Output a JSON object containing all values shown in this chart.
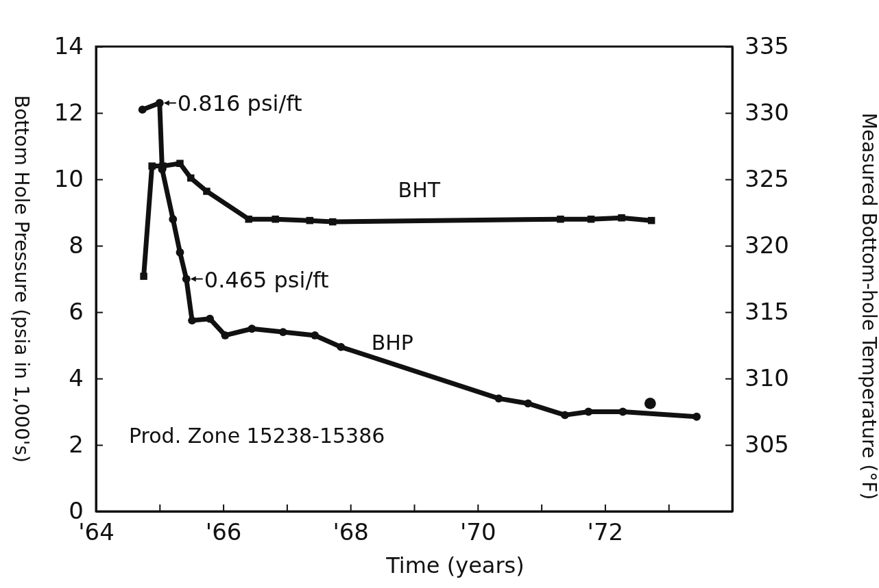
{
  "chart_data": {
    "type": "line",
    "xlabel": "Time (years)",
    "ylabel": "Bottom Hole Pressure (psia in 1,000's)",
    "y2label": "Measured Bottom-hole Temperature (°F)",
    "xlim": [
      64,
      74
    ],
    "xticks": [
      {
        "value": 64,
        "label": "'64"
      },
      {
        "value": 65,
        "label": null
      },
      {
        "value": 66,
        "label": "'66"
      },
      {
        "value": 67,
        "label": null
      },
      {
        "value": 68,
        "label": "'68"
      },
      {
        "value": 69,
        "label": null
      },
      {
        "value": 70,
        "label": "'70"
      },
      {
        "value": 71,
        "label": null
      },
      {
        "value": 72,
        "label": "'72"
      },
      {
        "value": 73,
        "label": null
      },
      {
        "value": 74,
        "label": null
      }
    ],
    "ylim": [
      0,
      14
    ],
    "yticks": [
      0,
      2,
      4,
      6,
      8,
      10,
      12,
      14
    ],
    "y2lim": [
      300,
      335
    ],
    "y2ticks": [
      305,
      310,
      315,
      320,
      325,
      330,
      335
    ],
    "grid": false,
    "line_style": "solid",
    "series": [
      {
        "name": "BHP",
        "marker": "circle",
        "color": "#111111",
        "x": [
          64.73,
          65.0,
          65.04,
          65.21,
          65.32,
          65.42,
          65.51,
          65.79,
          66.03,
          66.45,
          66.94,
          67.44,
          67.85,
          70.33,
          70.79,
          71.37,
          71.74,
          72.28,
          73.44
        ],
        "values": [
          12.1,
          12.3,
          10.3,
          8.8,
          7.8,
          7.0,
          5.75,
          5.8,
          5.3,
          5.5,
          5.4,
          5.3,
          4.95,
          3.4,
          3.25,
          2.9,
          3.0,
          3.0,
          2.85
        ]
      },
      {
        "name": "BHT",
        "marker": "square",
        "axis": "y2",
        "color": "#111111",
        "x": [
          64.75,
          64.88,
          65.05,
          65.32,
          65.49,
          65.74,
          66.4,
          66.82,
          67.36,
          67.72,
          71.3,
          71.78,
          72.26,
          72.73
        ],
        "values": [
          317.7,
          326.0,
          326.0,
          326.2,
          325.1,
          324.1,
          322.0,
          322.0,
          321.9,
          321.8,
          322.0,
          322.0,
          322.1,
          321.9
        ]
      },
      {
        "type": "scatter",
        "marker": "circle",
        "color": "#111111",
        "x": [
          72.71
        ],
        "values": [
          3.25
        ]
      }
    ],
    "annotations": [
      {
        "text": "0.816 psi/ft",
        "x": 65.0,
        "y": 12.3
      },
      {
        "text": "0.465 psi/ft",
        "x": 65.42,
        "y": 7.0
      },
      "Prod. Zone 15238-15386"
    ]
  }
}
